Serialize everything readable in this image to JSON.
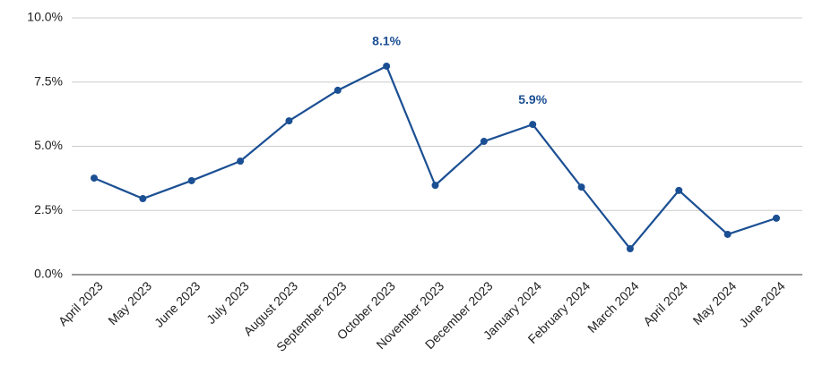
{
  "chart_data": {
    "type": "line",
    "categories": [
      "April 2023",
      "May 2023",
      "June 2023",
      "July 2023",
      "August 2023",
      "September 2023",
      "October 2023",
      "November 2023",
      "December 2023",
      "January 2024",
      "February 2024",
      "March 2024",
      "April 2024",
      "May 2024",
      "June 2024"
    ],
    "series": [
      {
        "color": "#1b4f93",
        "values": [
          3.76,
          2.96,
          3.66,
          4.42,
          5.99,
          7.18,
          8.12,
          3.48,
          5.19,
          5.85,
          3.41,
          1.01,
          3.28,
          1.57,
          2.2
        ],
        "value_labels": [
          null,
          null,
          null,
          null,
          null,
          null,
          "8.1%",
          null,
          null,
          "5.9%",
          null,
          null,
          null,
          null,
          null
        ]
      }
    ],
    "ylim": [
      0,
      10
    ],
    "yticks": [
      {
        "value": 0,
        "label": "0.0%"
      },
      {
        "value": 2.5,
        "label": "2.5%"
      },
      {
        "value": 5,
        "label": "5.0%"
      },
      {
        "value": 7.5,
        "label": "7.5%"
      },
      {
        "value": 10,
        "label": "10.0%"
      }
    ],
    "grid": true
  }
}
